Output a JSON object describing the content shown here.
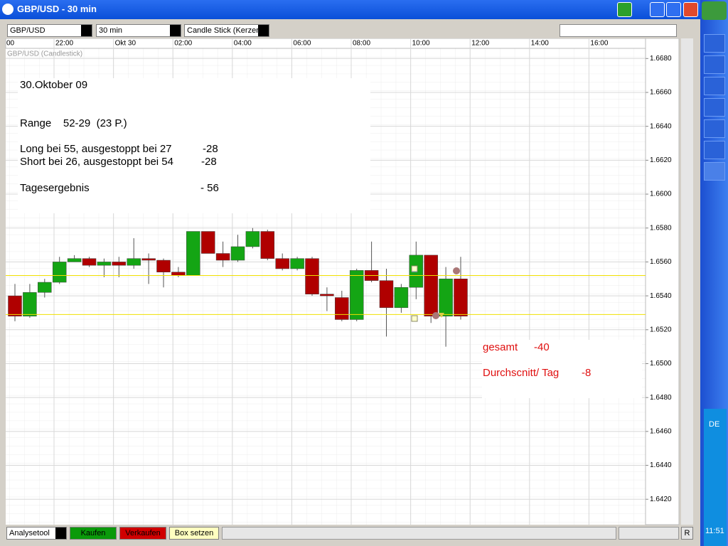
{
  "window": {
    "title": "GBP/USD - 30 min"
  },
  "toolbar": {
    "symbol": "GBP/USD",
    "interval": "30 min",
    "chart_style": "Candle Stick (Kerzen"
  },
  "chart_data": {
    "type": "candlestick",
    "label": "GBP/USD (Candlestick)",
    "xticks": [
      "00",
      "22:00",
      "Okt 30",
      "02:00",
      "04:00",
      "06:00",
      "08:00",
      "10:00",
      "12:00",
      "14:00",
      "16:00"
    ],
    "open": [
      1.654,
      1.6528,
      1.6542,
      1.6548,
      1.656,
      1.6562,
      1.6558,
      1.656,
      1.6558,
      1.6562,
      1.6561,
      1.6554,
      1.6552,
      1.6578,
      1.6565,
      1.6561,
      1.6569,
      1.6578,
      1.6562,
      1.6556,
      1.6562,
      1.6541,
      1.6539,
      1.6526,
      1.6555,
      1.6549,
      1.6533,
      1.6545,
      1.6564,
      1.6528,
      1.655
    ],
    "close": [
      1.6528,
      1.6542,
      1.6548,
      1.656,
      1.6562,
      1.6558,
      1.656,
      1.6558,
      1.6562,
      1.6561,
      1.6554,
      1.6552,
      1.6578,
      1.6565,
      1.6561,
      1.6569,
      1.6578,
      1.6562,
      1.6556,
      1.6562,
      1.6541,
      1.654,
      1.6526,
      1.6555,
      1.6549,
      1.6533,
      1.6545,
      1.6564,
      1.6528,
      1.655,
      1.6528
    ],
    "high": [
      1.6547,
      1.6547,
      1.655,
      1.6563,
      1.6564,
      1.6563,
      1.6562,
      1.6563,
      1.6574,
      1.6565,
      1.6562,
      1.6557,
      1.6578,
      1.6578,
      1.6572,
      1.6576,
      1.658,
      1.6579,
      1.6565,
      1.6563,
      1.6563,
      1.6545,
      1.6543,
      1.6556,
      1.6572,
      1.6556,
      1.6547,
      1.6572,
      1.6564,
      1.6557,
      1.6563
    ],
    "low": [
      1.6525,
      1.6527,
      1.6539,
      1.6547,
      1.656,
      1.6557,
      1.6551,
      1.6551,
      1.6556,
      1.6547,
      1.6545,
      1.6551,
      1.6552,
      1.6565,
      1.6557,
      1.656,
      1.6568,
      1.6561,
      1.6555,
      1.6555,
      1.654,
      1.6531,
      1.6525,
      1.6525,
      1.6548,
      1.6516,
      1.653,
      1.6538,
      1.6524,
      1.651,
      1.6526
    ],
    "up_color": "#14a514",
    "down_color": "#b00000",
    "hlines": [
      1.6552,
      1.6529
    ],
    "hline_color": "#f0e000",
    "ylim": [
      1.6405,
      1.6686
    ],
    "yticks": [
      {
        "value": 1.642,
        "label": "1.6420"
      },
      {
        "value": 1.644,
        "label": "1.6440"
      },
      {
        "value": 1.646,
        "label": "1.6460"
      },
      {
        "value": 1.648,
        "label": "1.6480"
      },
      {
        "value": 1.65,
        "label": "1.6500"
      },
      {
        "value": 1.652,
        "label": "1.6520"
      },
      {
        "value": 1.654,
        "label": "1.6540"
      },
      {
        "value": 1.656,
        "label": "1.6560"
      },
      {
        "value": 1.658,
        "label": "1.6580"
      },
      {
        "value": 1.66,
        "label": "1.6600"
      },
      {
        "value": 1.662,
        "label": "1.6620"
      },
      {
        "value": 1.664,
        "label": "1.6640"
      },
      {
        "value": 1.666,
        "label": "1.6660"
      },
      {
        "value": 1.668,
        "label": "1.6680"
      }
    ],
    "grid": true
  },
  "notes": {
    "date": "30.Oktober 09",
    "range": "Range    52-29  (23 P.)",
    "long": "Long bei 55, ausgestoppt bei 27",
    "long_result": "-28",
    "short": "Short bei 26, ausgestoppt bei 54",
    "short_result": "-28",
    "day_label": "Tagesergebnis",
    "day_result": "- 56",
    "total_label": "gesamt",
    "total": "-40",
    "avg_label": "Durchscnitt/ Tag",
    "avg": "-8"
  },
  "bottom_bar": {
    "tool": "Analysetool",
    "buy": "Kaufen",
    "sell": "Verkaufen",
    "box": "Box setzen",
    "reset": "R"
  },
  "taskbar": {
    "language": "DE",
    "clock": "11:51"
  }
}
